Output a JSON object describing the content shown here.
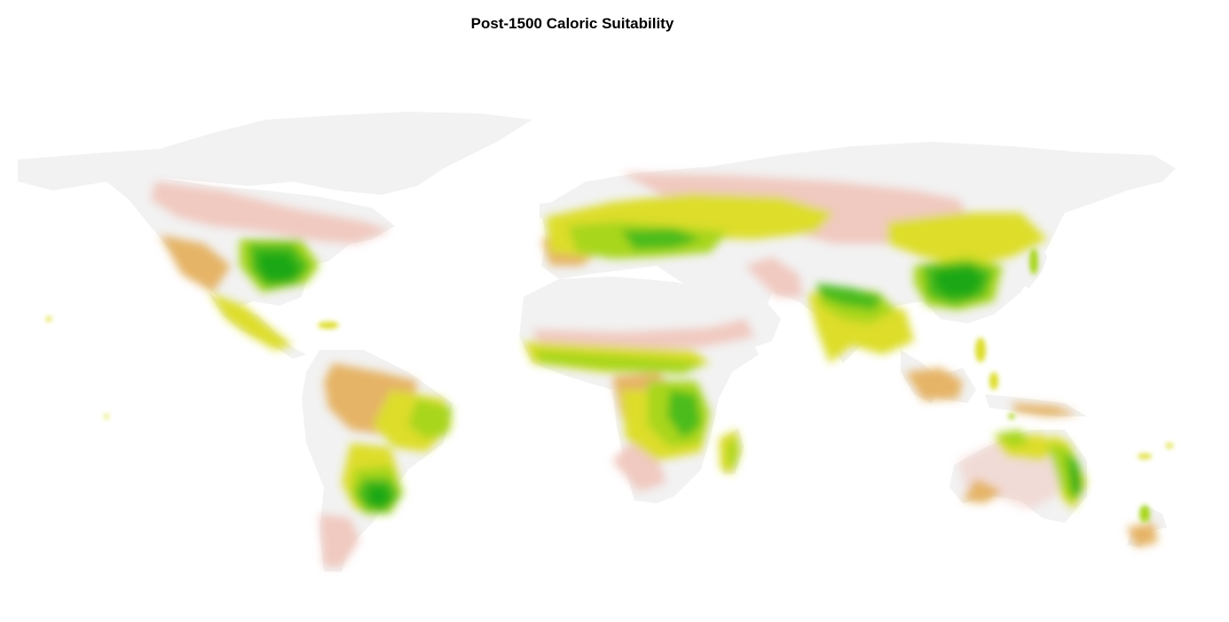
{
  "title": "Post-1500 Caloric Suitability",
  "palette": {
    "unsuitable": "#f2f2f2",
    "very_low": "#f0c9c0",
    "low": "#e6b3a0",
    "low_medium": "#e5b466",
    "medium": "#e1c95a",
    "medium_high": "#dddd2c",
    "high": "#a8d61e",
    "very_high": "#4cbc1c",
    "max": "#1ea814"
  }
}
